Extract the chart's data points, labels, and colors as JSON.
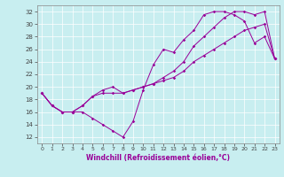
{
  "title": "",
  "xlabel": "Windchill (Refroidissement éolien,°C)",
  "ylabel": "",
  "background_color": "#c8eef0",
  "line_color": "#990099",
  "xlim": [
    -0.5,
    23.5
  ],
  "ylim": [
    11,
    33
  ],
  "xticks": [
    0,
    1,
    2,
    3,
    4,
    5,
    6,
    7,
    8,
    9,
    10,
    11,
    12,
    13,
    14,
    15,
    16,
    17,
    18,
    19,
    20,
    21,
    22,
    23
  ],
  "yticks": [
    12,
    14,
    16,
    18,
    20,
    22,
    24,
    26,
    28,
    30,
    32
  ],
  "line1_x": [
    0,
    1,
    2,
    3,
    4,
    5,
    6,
    7,
    8,
    9,
    10,
    11,
    12,
    13,
    14,
    15,
    16,
    17,
    18,
    19,
    20,
    21,
    22,
    23
  ],
  "line1_y": [
    19,
    17,
    16,
    16,
    16,
    15,
    14,
    13,
    12,
    14.5,
    19.5,
    23.5,
    26,
    25.5,
    27.5,
    29,
    31.5,
    32,
    32,
    31.5,
    30.5,
    27,
    28,
    24.5
  ],
  "line2_x": [
    0,
    1,
    2,
    3,
    4,
    5,
    6,
    7,
    8,
    9,
    10,
    11,
    12,
    13,
    14,
    15,
    16,
    17,
    18,
    19,
    20,
    21,
    22,
    23
  ],
  "line2_y": [
    19,
    17,
    16,
    16,
    17,
    18.5,
    19,
    19,
    19,
    19.5,
    20,
    20.5,
    21,
    21.5,
    22.5,
    24,
    25,
    26,
    27,
    28,
    29,
    29.5,
    30,
    24.5
  ],
  "line3_x": [
    0,
    1,
    2,
    3,
    4,
    5,
    6,
    7,
    8,
    9,
    10,
    11,
    12,
    13,
    14,
    15,
    16,
    17,
    18,
    19,
    20,
    21,
    22,
    23
  ],
  "line3_y": [
    19,
    17,
    16,
    16,
    17,
    18.5,
    19.5,
    20,
    19,
    19.5,
    20,
    20.5,
    21.5,
    22.5,
    24,
    26.5,
    28,
    29.5,
    31,
    32,
    32,
    31.5,
    32,
    24.5
  ]
}
